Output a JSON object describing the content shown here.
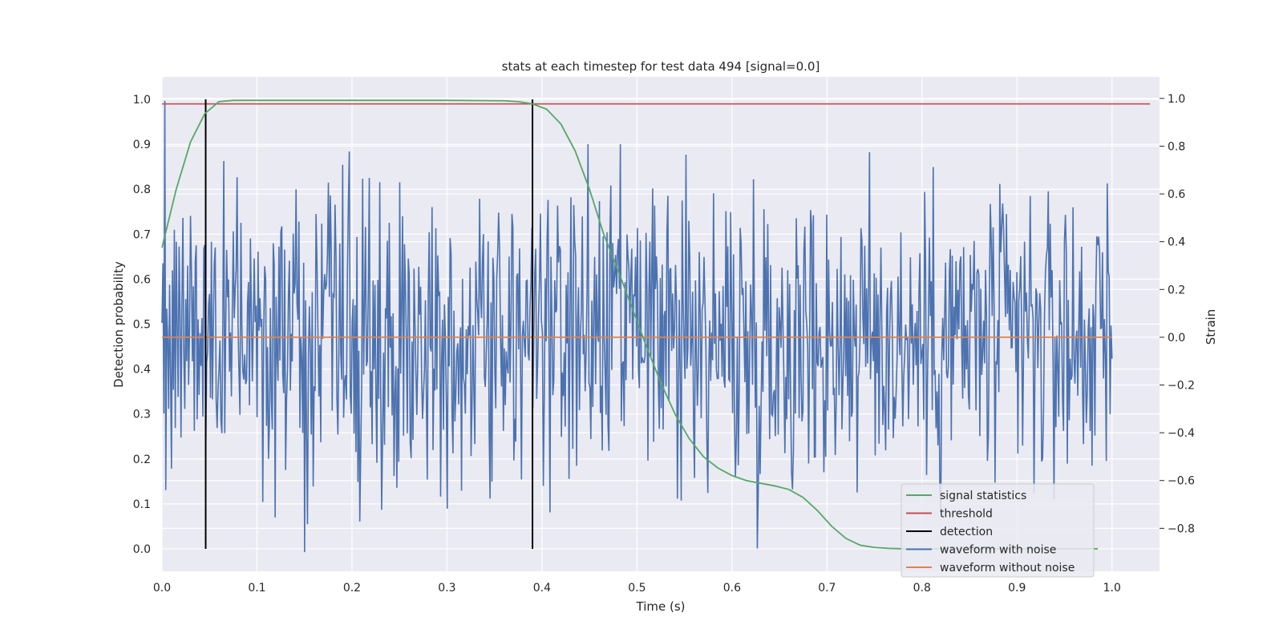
{
  "chart_data": {
    "type": "line",
    "title": "stats at each timestep for test data 494 [signal=0.0]",
    "xlabel": "Time (s)",
    "ylabel_left": "Detection probability",
    "ylabel_right": "Strain",
    "xlim": [
      0.0,
      1.05
    ],
    "ylim_left": [
      -0.05,
      1.05
    ],
    "ylim_right": [
      -0.98,
      1.09
    ],
    "x_ticks": [
      0.0,
      0.1,
      0.2,
      0.3,
      0.4,
      0.5,
      0.6,
      0.7,
      0.8,
      0.9,
      1.0
    ],
    "x_tick_labels": [
      "0.0",
      "0.1",
      "0.2",
      "0.3",
      "0.4",
      "0.5",
      "0.6",
      "0.7",
      "0.8",
      "0.9",
      "1.0"
    ],
    "y_left_ticks": [
      0.0,
      0.1,
      0.2,
      0.3,
      0.4,
      0.5,
      0.6,
      0.7,
      0.8,
      0.9,
      1.0
    ],
    "y_left_tick_labels": [
      "0.0",
      "0.1",
      "0.2",
      "0.3",
      "0.4",
      "0.5",
      "0.6",
      "0.7",
      "0.8",
      "0.9",
      "1.0"
    ],
    "y_right_ticks": [
      1.0,
      0.8,
      0.6,
      0.4,
      0.2,
      0.0,
      -0.2,
      -0.4,
      -0.6,
      -0.8
    ],
    "y_right_tick_labels": [
      "1.0",
      "0.8",
      "0.6",
      "0.4",
      "0.2",
      "0.0",
      "−0.2",
      "−0.4",
      "−0.6",
      "−0.8"
    ],
    "grid": true,
    "legend_position": "lower-right",
    "colors": {
      "background": "#eaeaf2",
      "grid": "#ffffff",
      "signal_statistics": "#55a868",
      "threshold": "#c44e52",
      "detection": "#000000",
      "waveform_noise": "#4c72b0",
      "waveform_clean": "#dd8452"
    },
    "series": [
      {
        "name": "signal statistics",
        "axis": "left",
        "x": [
          0.0,
          0.015,
          0.03,
          0.045,
          0.06,
          0.075,
          0.1,
          0.2,
          0.3,
          0.36,
          0.375,
          0.39,
          0.405,
          0.42,
          0.435,
          0.45,
          0.465,
          0.48,
          0.495,
          0.51,
          0.525,
          0.54,
          0.555,
          0.57,
          0.585,
          0.6,
          0.615,
          0.63,
          0.645,
          0.66,
          0.675,
          0.69,
          0.705,
          0.72,
          0.735,
          0.75,
          0.765,
          0.78,
          0.8,
          0.85,
          0.9,
          0.95,
          0.985
        ],
        "y": [
          0.67,
          0.8,
          0.905,
          0.968,
          0.995,
          0.998,
          0.998,
          0.998,
          0.998,
          0.997,
          0.995,
          0.99,
          0.978,
          0.945,
          0.885,
          0.8,
          0.7,
          0.62,
          0.535,
          0.45,
          0.37,
          0.3,
          0.245,
          0.205,
          0.18,
          0.163,
          0.152,
          0.146,
          0.14,
          0.132,
          0.114,
          0.085,
          0.05,
          0.023,
          0.008,
          0.003,
          0.001,
          0.0,
          0.0,
          0.0,
          0.0,
          0.0,
          0.0
        ]
      },
      {
        "name": "threshold",
        "axis": "left",
        "x": [
          0.0,
          1.04
        ],
        "y": [
          0.99,
          0.99
        ]
      },
      {
        "name": "detection",
        "axis": "left",
        "x": [
          0.046,
          0.39
        ],
        "y_range": [
          0.0,
          1.0
        ]
      },
      {
        "name": "waveform with noise",
        "axis": "right",
        "x_range": [
          0.0,
          1.0
        ],
        "n_points": 1000,
        "y_sample": [
          0.06,
          0.31,
          -0.32,
          0.99,
          -0.64,
          0.12,
          0.0,
          -0.3,
          0.22,
          -0.15,
          -0.55,
          0.28,
          -0.22,
          0.45,
          -0.38,
          0.4,
          0.05,
          -0.25,
          0.38,
          0.11,
          -0.42,
          0.15,
          0.5,
          -0.08,
          -0.3,
          0.16,
          -0.1,
          0.3,
          -0.2,
          0.04
        ],
        "y_max": 0.99,
        "y_min": -0.9
      },
      {
        "name": "waveform without noise",
        "axis": "right",
        "x": [
          0.0,
          1.0
        ],
        "y": [
          0.0,
          0.0
        ]
      }
    ],
    "legend": [
      "signal statistics",
      "threshold",
      "detection",
      "waveform with noise",
      "waveform without noise"
    ]
  }
}
